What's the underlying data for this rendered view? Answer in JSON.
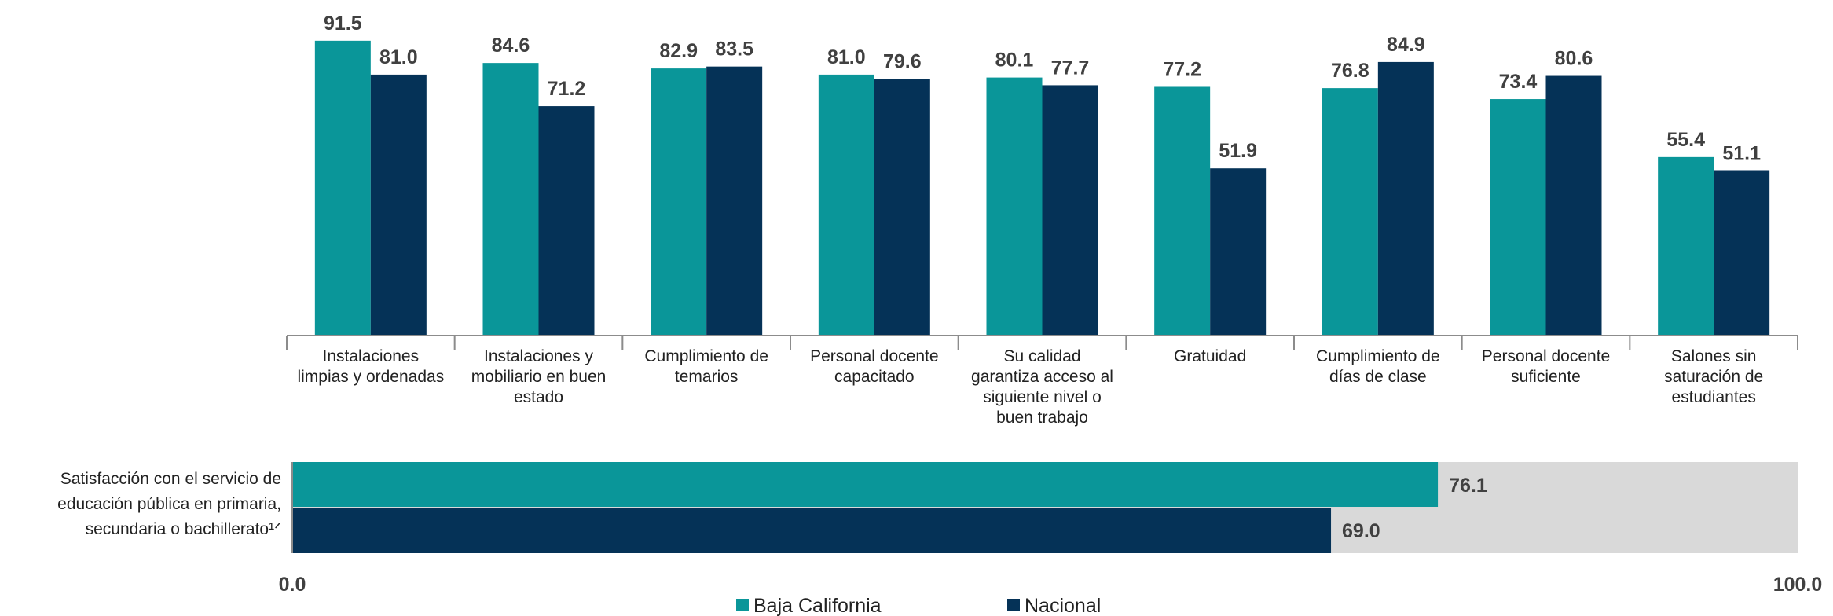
{
  "chart_data": [
    {
      "type": "bar",
      "categories": [
        "Instalaciones limpias y ordenadas",
        "Instalaciones y mobiliario en buen estado",
        "Cumplimiento de temarios",
        "Personal docente capacitado",
        "Su calidad garantiza acceso al siguiente nivel o buen trabajo",
        "Gratuidad",
        "Cumplimiento de días de clase",
        "Personal docente suficiente",
        "Salones sin saturación de estudiantes"
      ],
      "series": [
        {
          "name": "Baja California",
          "color": "#0a9699",
          "values": [
            91.5,
            84.6,
            82.9,
            81.0,
            80.1,
            77.2,
            76.8,
            73.4,
            55.4
          ],
          "value_labels": [
            "91.5",
            "84.6",
            "82.9",
            "81.0",
            "80.1",
            "77.2",
            "76.8",
            "73.4",
            "55.4"
          ]
        },
        {
          "name": "Nacional",
          "color": "#053257",
          "values": [
            81.0,
            71.2,
            83.5,
            79.6,
            77.7,
            51.9,
            84.9,
            80.6,
            51.1
          ],
          "value_labels": [
            "81.0",
            "71.2",
            "83.5",
            "79.6",
            "77.7",
            "51.9",
            "84.9",
            "80.6",
            "51.1"
          ]
        }
      ],
      "ylim": [
        0,
        100
      ]
    },
    {
      "type": "hbar",
      "categories": [
        "Satisfacción con el servicio de educación pública en primaria, secundaria o bachillerato¹ᐟ"
      ],
      "series": [
        {
          "color": "#0a9699",
          "values": [
            76.1
          ],
          "value_labels": [
            "76.1"
          ]
        },
        {
          "color": "#053257",
          "values": [
            69.0
          ],
          "value_labels": [
            "69.0"
          ]
        }
      ],
      "xlim": [
        0,
        100
      ],
      "xticks": [
        {
          "value": 0,
          "label": "0.0"
        },
        {
          "value": 100,
          "label": "100.0"
        }
      ],
      "background": "#d9d9d9"
    }
  ]
}
